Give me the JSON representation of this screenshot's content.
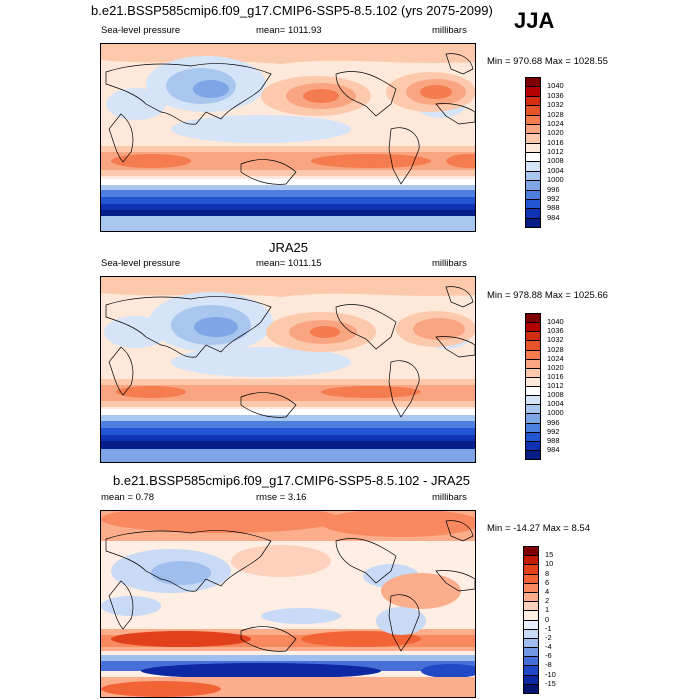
{
  "season": "JJA",
  "panels": [
    {
      "title": "b.e21.BSSP585cmip6.f09_g17.CMIP6-SSP5-8.5.102 (yrs 2075-2099)",
      "left": "Sea-level pressure",
      "mid": "mean= 1011.93",
      "right": "millibars",
      "minmax": "Min = 970.68 Max = 1028.55",
      "colorbar": {
        "labels": [
          "1040",
          "1036",
          "1032",
          "1028",
          "1024",
          "1020",
          "1016",
          "1012",
          "1008",
          "1004",
          "1000",
          "996",
          "992",
          "988",
          "984"
        ],
        "colors": [
          "#7f0000",
          "#b30000",
          "#d42e12",
          "#e8542a",
          "#f47c4e",
          "#f9a582",
          "#fcc9ad",
          "#fde8da",
          "#ffffff",
          "#d6e4f7",
          "#a9c6ef",
          "#7ea6e7",
          "#4d7fde",
          "#2256d2",
          "#0f33b4",
          "#061c86"
        ]
      }
    },
    {
      "title": "JRA25",
      "left": "Sea-level pressure",
      "mid": "mean= 1011.15",
      "right": "millibars",
      "minmax": "Min = 978.88 Max = 1025.66",
      "colorbar": {
        "labels": [
          "1040",
          "1036",
          "1032",
          "1028",
          "1024",
          "1020",
          "1016",
          "1012",
          "1008",
          "1004",
          "1000",
          "996",
          "992",
          "988",
          "984"
        ],
        "colors": [
          "#7f0000",
          "#b30000",
          "#d42e12",
          "#e8542a",
          "#f47c4e",
          "#f9a582",
          "#fcc9ad",
          "#fde8da",
          "#ffffff",
          "#d6e4f7",
          "#a9c6ef",
          "#7ea6e7",
          "#4d7fde",
          "#2256d2",
          "#0f33b4",
          "#061c86"
        ]
      }
    },
    {
      "title": "b.e21.BSSP585cmip6.f09_g17.CMIP6-SSP5-8.5.102 - JRA25",
      "left": "mean =  0.78",
      "mid": "rmse =  3.16",
      "right": "millibars",
      "minmax": "Min = -14.27 Max =  8.54",
      "colorbar": {
        "labels": [
          "15",
          "10",
          "8",
          "6",
          "4",
          "2",
          "1",
          "0",
          "-1",
          "-2",
          "-4",
          "-6",
          "-8",
          "-10",
          "-15"
        ],
        "colors": [
          "#7f0000",
          "#c31c00",
          "#e2401a",
          "#f26436",
          "#f8885e",
          "#fbad8c",
          "#fdd1bb",
          "#feeee3",
          "#e9f0fb",
          "#c8daf5",
          "#9fbeee",
          "#7199e3",
          "#4470d8",
          "#2148c6",
          "#0e27a2",
          "#051470"
        ]
      }
    }
  ]
}
